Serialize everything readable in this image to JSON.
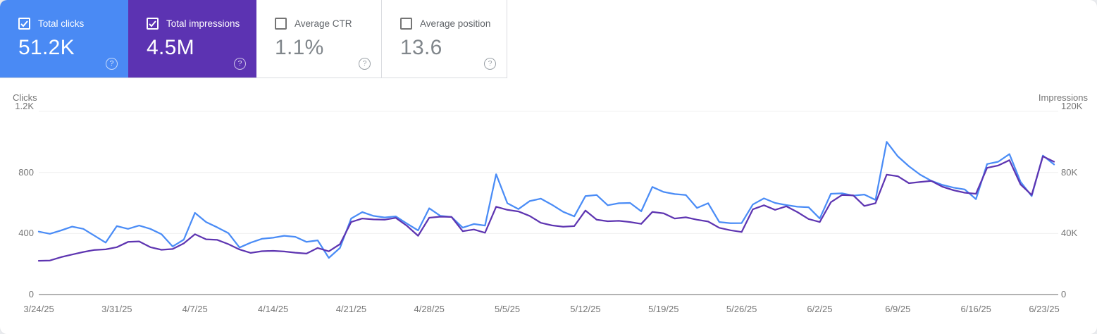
{
  "cards": [
    {
      "label": "Total clicks",
      "value": "51.2K",
      "selected": true,
      "bg": "#4a8af4"
    },
    {
      "label": "Total impressions",
      "value": "4.5M",
      "selected": true,
      "bg": "#5c33b2"
    },
    {
      "label": "Average CTR",
      "value": "1.1%",
      "selected": false,
      "bg": "#ffffff"
    },
    {
      "label": "Average position",
      "value": "13.6",
      "selected": false,
      "bg": "#ffffff"
    }
  ],
  "icons": {
    "help_glyph": "?"
  },
  "colors": {
    "clicks_accent": "#4a8af4",
    "impressions_accent": "#5c33b2",
    "grid_line": "#f0f0f0",
    "axis_line": "#b3b3b3",
    "tick_text": "#757575"
  },
  "chart_data": {
    "type": "line",
    "frequency": "daily",
    "x_start": "3/24/25",
    "x_end": "6/23/25",
    "grid": "horizontal",
    "legend_position": "none",
    "x_tick_labels": [
      "3/24/25",
      "3/31/25",
      "4/7/25",
      "4/14/25",
      "4/21/25",
      "4/28/25",
      "5/5/25",
      "5/12/25",
      "5/19/25",
      "5/26/25",
      "6/2/25",
      "6/9/25",
      "6/16/25",
      "6/23/25"
    ],
    "x_tick_day_indices": [
      0,
      7,
      14,
      21,
      28,
      35,
      42,
      49,
      56,
      63,
      70,
      77,
      84,
      91
    ],
    "left_axis": {
      "title": "Clicks",
      "max": 1200,
      "tick_labels": [
        "1.2K",
        "800",
        "400",
        "0"
      ],
      "tick_values": [
        1200,
        800,
        400,
        0
      ]
    },
    "right_axis": {
      "title": "Impressions",
      "max": 120000,
      "tick_labels": [
        "120K",
        "80K",
        "40K",
        "0"
      ],
      "tick_values": [
        120000,
        80000,
        40000,
        0
      ]
    },
    "series": [
      {
        "name": "Total clicks",
        "axis": "left",
        "color": "#4a8cf6",
        "values": [
          412,
          398,
          420,
          445,
          430,
          385,
          340,
          448,
          430,
          452,
          430,
          395,
          315,
          360,
          535,
          475,
          440,
          402,
          308,
          340,
          365,
          372,
          385,
          378,
          345,
          355,
          240,
          305,
          498,
          540,
          515,
          505,
          512,
          465,
          420,
          565,
          515,
          508,
          438,
          462,
          452,
          788,
          598,
          560,
          612,
          628,
          588,
          542,
          512,
          645,
          652,
          585,
          598,
          600,
          545,
          705,
          672,
          658,
          652,
          567,
          598,
          475,
          467,
          468,
          590,
          630,
          600,
          586,
          575,
          572,
          498,
          660,
          663,
          648,
          655,
          620,
          1000,
          905,
          840,
          785,
          745,
          718,
          700,
          688,
          625,
          855,
          870,
          920,
          738,
          645,
          910,
          852
        ]
      },
      {
        "name": "Total impressions",
        "axis": "right",
        "color": "#5e35b1",
        "values": [
          22100,
          22300,
          24500,
          26200,
          27900,
          29200,
          29600,
          31000,
          34500,
          34800,
          31000,
          29300,
          29800,
          33500,
          39500,
          36200,
          35800,
          33000,
          29500,
          27300,
          28400,
          28600,
          28200,
          27400,
          26800,
          30500,
          28300,
          33000,
          47500,
          49800,
          49200,
          49000,
          50200,
          45000,
          38500,
          50300,
          51000,
          50800,
          41500,
          42600,
          40500,
          57500,
          55500,
          54400,
          51500,
          47000,
          45300,
          44400,
          44800,
          55000,
          49000,
          48000,
          48300,
          47500,
          46300,
          54100,
          53200,
          49800,
          50600,
          49000,
          47800,
          43700,
          42100,
          41000,
          55800,
          58500,
          55500,
          57800,
          54000,
          49500,
          47500,
          60500,
          65200,
          65000,
          58000,
          59800,
          78500,
          77500,
          72900,
          73700,
          74400,
          70600,
          68300,
          66700,
          66000,
          83000,
          84500,
          88000,
          72100,
          65200,
          90500,
          87000
        ]
      }
    ]
  }
}
